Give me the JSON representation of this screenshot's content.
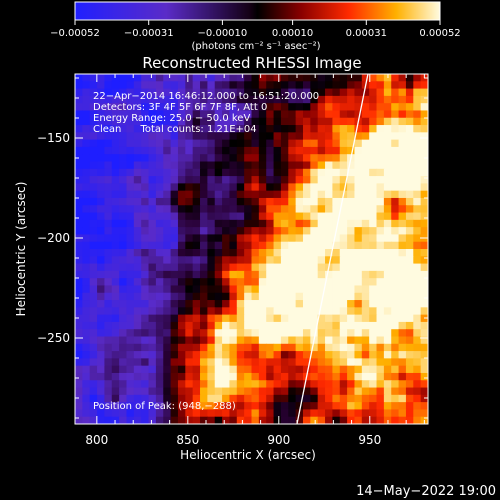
{
  "chart_data": {
    "type": "heatmap",
    "title": "Reconstructed RHESSI Image",
    "xlabel": "Heliocentric X (arcsec)",
    "ylabel": "Heliocentric Y (arcsec)",
    "xlim": [
      788,
      982
    ],
    "ylim": [
      -293,
      -118
    ],
    "x_ticks": [
      800,
      850,
      900,
      950
    ],
    "y_ticks": [
      -150,
      -200,
      -250
    ],
    "x_tick_labels": [
      "800",
      "850",
      "900",
      "950"
    ],
    "y_tick_labels": [
      "−150",
      "−200",
      "−250"
    ],
    "colorbar": {
      "min": -0.00052,
      "max": 0.00052,
      "ticks": [
        -0.00052,
        -0.00031,
        -0.0001,
        0.0001,
        0.00031,
        0.00052
      ],
      "tick_labels": [
        "−0.00052",
        "−0.00031",
        "−0.00010",
        "0.00010",
        "0.00031",
        "0.00052"
      ],
      "unit_label": "(photons cm⁻² s⁻¹ asec⁻²)"
    },
    "annotations": [
      "22−Apr−2014 16:46:12.000 to 16:51:20.000",
      "Detectors: 3F 4F 5F 6F 7F 8F, Att 0",
      "Energy Range: 25.0 − 50.0 keV",
      "Clean      Total counts: 1.21E+04",
      "Position of Peak: (948,−288)"
    ],
    "limb_line": {
      "x": [
        910,
        949
      ],
      "y": [
        -293,
        -118
      ]
    },
    "footer_date": "14−May−2022 19:00",
    "grid": false,
    "colors": {
      "background": "#000000",
      "axes": "#ffffff",
      "limb": "#ffffff"
    }
  }
}
